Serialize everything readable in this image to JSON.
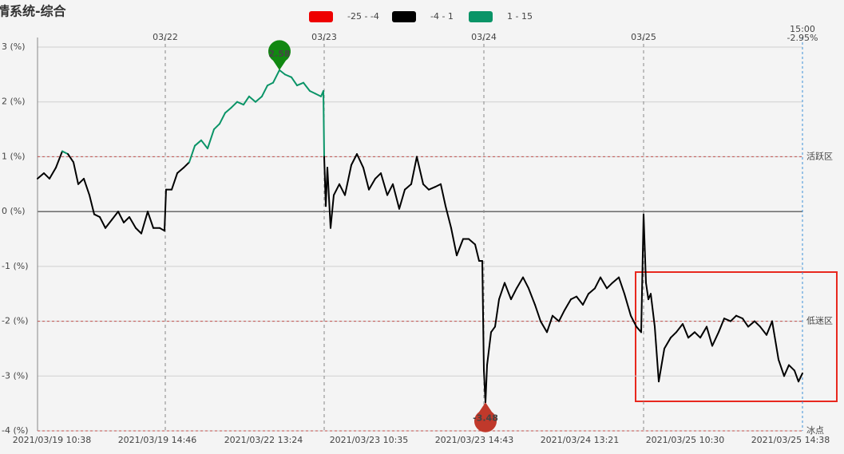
{
  "chart_data": {
    "type": "line",
    "title": "情系统-综合",
    "legend": [
      {
        "label": "-25 - -4",
        "min": -25,
        "max": -4,
        "color": "#ee0000"
      },
      {
        "label": "-4 - 1",
        "min": -4,
        "max": 1,
        "color": "#000000"
      },
      {
        "label": "1 - 15",
        "min": 1,
        "max": 15,
        "color": "#0a9467"
      }
    ],
    "xlim": [
      0,
      958
    ],
    "ylim": [
      -4,
      3
    ],
    "yticks": [
      {
        "value": -4,
        "label": "-4 (%)"
      },
      {
        "value": -3,
        "label": "-3 (%)"
      },
      {
        "value": -2,
        "label": "-2 (%)"
      },
      {
        "value": -1,
        "label": "-1 (%)"
      },
      {
        "value": 0,
        "label": "0 (%)"
      },
      {
        "value": 1,
        "label": "1 (%)"
      },
      {
        "value": 2,
        "label": "2 (%)"
      },
      {
        "value": 3,
        "label": "3 (%)"
      }
    ],
    "xticks": [
      {
        "value": 18,
        "label": "2021/03/19 10:38"
      },
      {
        "value": 150,
        "label": "2021/03/19 14:46"
      },
      {
        "value": 283,
        "label": "2021/03/22 13:24"
      },
      {
        "value": 415,
        "label": "2021/03/23 10:35"
      },
      {
        "value": 547,
        "label": "2021/03/23 14:43"
      },
      {
        "value": 679,
        "label": "2021/03/24 13:21"
      },
      {
        "value": 811,
        "label": "2021/03/25 10:30"
      },
      {
        "value": 943,
        "label": "2021/03/25 14:38"
      }
    ],
    "day_ticks": [
      {
        "value": 160,
        "label": "03/22"
      },
      {
        "value": 359,
        "label": "03/23"
      },
      {
        "value": 559,
        "label": "03/24"
      },
      {
        "value": 759,
        "label": "03/25"
      }
    ],
    "reference_lines": [
      {
        "value": 1,
        "label": "活跃区"
      },
      {
        "value": -2,
        "label": "低迷区"
      },
      {
        "value": -4,
        "label": "冰点"
      }
    ],
    "end_marker": {
      "x": 958,
      "time": "15:00",
      "value": -2.95,
      "label": "-2.95%"
    },
    "max_marker": {
      "x": 303,
      "value": 2.58,
      "color": "#118811"
    },
    "min_marker": {
      "x": 561,
      "value": -3.48,
      "color": "#c0392b"
    },
    "x": [
      0,
      8,
      15,
      23,
      31,
      38,
      45,
      51,
      58,
      65,
      71,
      78,
      85,
      93,
      101,
      108,
      115,
      123,
      130,
      138,
      145,
      153,
      159,
      161,
      168,
      175,
      183,
      190,
      197,
      205,
      213,
      221,
      228,
      235,
      243,
      250,
      258,
      265,
      273,
      281,
      288,
      295,
      303,
      310,
      318,
      325,
      333,
      341,
      348,
      355,
      358,
      359,
      361,
      363,
      367,
      371,
      378,
      385,
      393,
      400,
      408,
      415,
      423,
      430,
      438,
      445,
      453,
      460,
      468,
      475,
      483,
      490,
      498,
      505,
      511,
      518,
      525,
      533,
      540,
      548,
      553,
      557,
      559,
      561,
      563,
      568,
      573,
      578,
      585,
      593,
      600,
      608,
      615,
      623,
      630,
      638,
      645,
      653,
      660,
      668,
      675,
      683,
      690,
      698,
      705,
      713,
      720,
      728,
      735,
      743,
      750,
      756,
      759,
      762,
      765,
      768,
      773,
      778,
      785,
      793,
      800,
      808,
      815,
      823,
      830,
      838,
      845,
      853,
      860,
      868,
      875,
      883,
      890,
      898,
      905,
      913,
      920,
      928,
      935,
      941,
      948,
      953,
      958
    ],
    "values": [
      0.6,
      0.7,
      0.6,
      0.8,
      1.1,
      1.05,
      0.9,
      0.5,
      0.6,
      0.3,
      -0.05,
      -0.1,
      -0.3,
      -0.15,
      0.0,
      -0.2,
      -0.1,
      -0.3,
      -0.4,
      0.0,
      -0.3,
      -0.3,
      -0.35,
      0.4,
      0.4,
      0.7,
      0.8,
      0.9,
      1.2,
      1.3,
      1.15,
      1.5,
      1.6,
      1.8,
      1.9,
      2.0,
      1.95,
      2.1,
      2.0,
      2.1,
      2.3,
      2.35,
      2.58,
      2.5,
      2.45,
      2.3,
      2.35,
      2.2,
      2.15,
      2.1,
      2.2,
      1.0,
      0.1,
      0.8,
      -0.3,
      0.3,
      0.5,
      0.3,
      0.85,
      1.05,
      0.8,
      0.4,
      0.6,
      0.7,
      0.3,
      0.5,
      0.05,
      0.4,
      0.5,
      1.0,
      0.5,
      0.4,
      0.45,
      0.5,
      0.1,
      -0.3,
      -0.8,
      -0.5,
      -0.5,
      -0.6,
      -0.9,
      -0.9,
      -2.9,
      -3.48,
      -2.8,
      -2.2,
      -2.1,
      -1.6,
      -1.3,
      -1.6,
      -1.4,
      -1.2,
      -1.4,
      -1.7,
      -2.0,
      -2.2,
      -1.9,
      -2.0,
      -1.8,
      -1.6,
      -1.55,
      -1.7,
      -1.5,
      -1.4,
      -1.2,
      -1.4,
      -1.3,
      -1.2,
      -1.5,
      -1.9,
      -2.1,
      -2.2,
      -0.05,
      -1.3,
      -1.6,
      -1.5,
      -2.1,
      -3.1,
      -2.5,
      -2.3,
      -2.2,
      -2.05,
      -2.3,
      -2.2,
      -2.3,
      -2.1,
      -2.45,
      -2.2,
      -1.95,
      -2.0,
      -1.9,
      -1.95,
      -2.1,
      -2.0,
      -2.1,
      -2.25,
      -2.0,
      -2.7,
      -3.0,
      -2.8,
      -2.9,
      -3.1,
      -2.95
    ]
  }
}
